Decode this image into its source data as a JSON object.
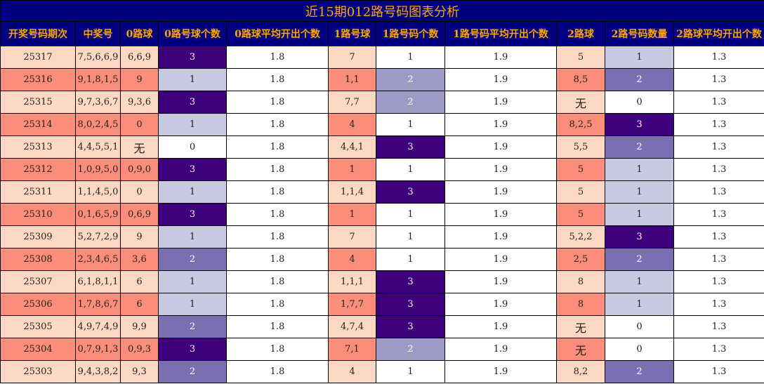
{
  "title": "近15期012路号码图表分析",
  "headers": [
    "开奖号码期次",
    "中奖号",
    "0路球",
    "0路号球个数",
    "0路球平均开出个数",
    "1路号球",
    "1路号码个数",
    "1路号码平均开出个数",
    "2路球",
    "2路号码数量",
    "2路球平均开出个数"
  ],
  "colors": {
    "header_bg": "#000080",
    "header_text": "#ffa500",
    "row_odd": "#fdd8c4",
    "row_even": "#fc8d7a",
    "count_scale_0_2": {
      "0": "#ffffff",
      "1": "#c7c9e1",
      "2": "#7a6fb0",
      "3": "#3f007d"
    },
    "count_scale_1": {
      "1": "#ffffff",
      "2": "#9e9ac8",
      "3": "#3f007d"
    }
  },
  "rows": [
    {
      "period": "25317",
      "numbers": "7,5,6,6,9",
      "r0": "6,6,9",
      "c0": "3",
      "a0": "1.8",
      "r1": "7",
      "c1": "1",
      "a1": "1.9",
      "r2": "5",
      "c2": "1",
      "a2": "1.3"
    },
    {
      "period": "25316",
      "numbers": "9,1,8,1,5",
      "r0": "9",
      "c0": "1",
      "a0": "1.8",
      "r1": "1,1",
      "c1": "2",
      "a1": "1.9",
      "r2": "8,5",
      "c2": "2",
      "a2": "1.3"
    },
    {
      "period": "25315",
      "numbers": "9,7,3,6,7",
      "r0": "9,3,6",
      "c0": "3",
      "a0": "1.8",
      "r1": "7,7",
      "c1": "2",
      "a1": "1.9",
      "r2": "无",
      "c2": "0",
      "a2": "1.3"
    },
    {
      "period": "25314",
      "numbers": "8,0,2,4,5",
      "r0": "0",
      "c0": "1",
      "a0": "1.8",
      "r1": "4",
      "c1": "1",
      "a1": "1.9",
      "r2": "8,2,5",
      "c2": "3",
      "a2": "1.3"
    },
    {
      "period": "25313",
      "numbers": "4,4,5,5,1",
      "r0": "无",
      "c0": "0",
      "a0": "1.8",
      "r1": "4,4,1",
      "c1": "3",
      "a1": "1.9",
      "r2": "5,5",
      "c2": "2",
      "a2": "1.3"
    },
    {
      "period": "25312",
      "numbers": "1,0,9,5,0",
      "r0": "0,9,0",
      "c0": "3",
      "a0": "1.8",
      "r1": "1",
      "c1": "1",
      "a1": "1.9",
      "r2": "5",
      "c2": "1",
      "a2": "1.3"
    },
    {
      "period": "25311",
      "numbers": "1,1,4,5,0",
      "r0": "0",
      "c0": "1",
      "a0": "1.8",
      "r1": "1,1,4",
      "c1": "3",
      "a1": "1.9",
      "r2": "5",
      "c2": "1",
      "a2": "1.3"
    },
    {
      "period": "25310",
      "numbers": "0,1,6,5,9",
      "r0": "0,6,9",
      "c0": "3",
      "a0": "1.8",
      "r1": "1",
      "c1": "1",
      "a1": "1.9",
      "r2": "5",
      "c2": "1",
      "a2": "1.3"
    },
    {
      "period": "25309",
      "numbers": "5,2,7,2,9",
      "r0": "9",
      "c0": "1",
      "a0": "1.8",
      "r1": "7",
      "c1": "1",
      "a1": "1.9",
      "r2": "5,2,2",
      "c2": "3",
      "a2": "1.3"
    },
    {
      "period": "25308",
      "numbers": "2,3,4,6,5",
      "r0": "3,6",
      "c0": "2",
      "a0": "1.8",
      "r1": "4",
      "c1": "1",
      "a1": "1.9",
      "r2": "2,5",
      "c2": "2",
      "a2": "1.3"
    },
    {
      "period": "25307",
      "numbers": "6,1,8,1,1",
      "r0": "6",
      "c0": "1",
      "a0": "1.8",
      "r1": "1,1,1",
      "c1": "3",
      "a1": "1.9",
      "r2": "8",
      "c2": "1",
      "a2": "1.3"
    },
    {
      "period": "25306",
      "numbers": "1,7,8,6,7",
      "r0": "6",
      "c0": "1",
      "a0": "1.8",
      "r1": "1,7,7",
      "c1": "3",
      "a1": "1.9",
      "r2": "8",
      "c2": "1",
      "a2": "1.3"
    },
    {
      "period": "25305",
      "numbers": "4,9,7,4,9",
      "r0": "9,9",
      "c0": "2",
      "a0": "1.8",
      "r1": "4,7,4",
      "c1": "3",
      "a1": "1.9",
      "r2": "无",
      "c2": "0",
      "a2": "1.3"
    },
    {
      "period": "25304",
      "numbers": "0,7,9,1,3",
      "r0": "0,9,3",
      "c0": "3",
      "a0": "1.8",
      "r1": "7,1",
      "c1": "2",
      "a1": "1.9",
      "r2": "无",
      "c2": "0",
      "a2": "1.3"
    },
    {
      "period": "25303",
      "numbers": "9,4,3,8,2",
      "r0": "9,3",
      "c0": "2",
      "a0": "1.8",
      "r1": "4",
      "c1": "1",
      "a1": "1.9",
      "r2": "8,2",
      "c2": "2",
      "a2": "1.3"
    }
  ]
}
